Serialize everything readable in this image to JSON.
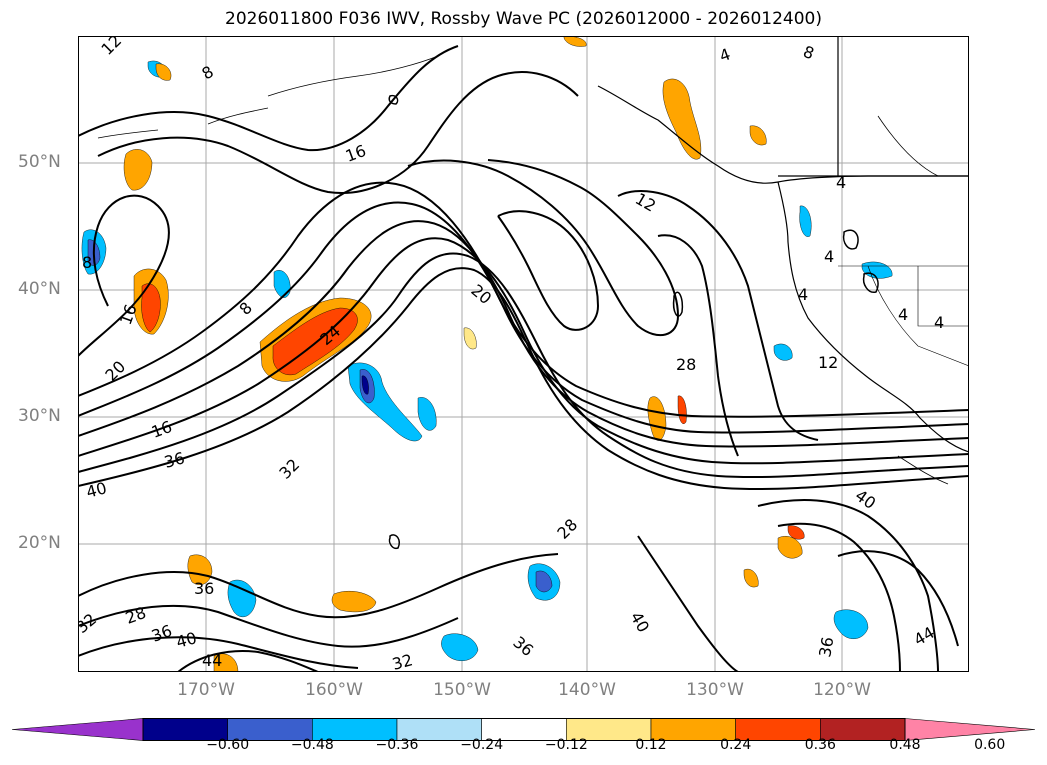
{
  "title": "2026011800 F036 IWV, Rossby Wave PC (2026012000 - 2026012400)",
  "lat_ticks": [
    "50°N",
    "40°N",
    "30°N",
    "20°N"
  ],
  "lon_ticks": [
    "170°W",
    "160°W",
    "150°W",
    "140°W",
    "130°W",
    "120°W"
  ],
  "contour_labels": [
    "12",
    "8",
    "16",
    "12",
    "4",
    "8",
    "16",
    "4",
    "4",
    "4",
    "4",
    "4",
    "8",
    "20",
    "20",
    "8",
    "24",
    "12",
    "28",
    "16",
    "36",
    "40",
    "32",
    "28",
    "40",
    "36",
    "32",
    "28",
    "36",
    "40",
    "44",
    "32",
    "36",
    "40",
    "36",
    "44"
  ],
  "colorbar": {
    "ticks": [
      "−0.60",
      "−0.48",
      "−0.36",
      "−0.24",
      "−0.12",
      "0.12",
      "0.24",
      "0.36",
      "0.48",
      "0.60"
    ],
    "colors": [
      "#9932cc",
      "#00008b",
      "#3a5fcd",
      "#00bfff",
      "#afe0f7",
      "#ffffff",
      "#ffe889",
      "#ffa500",
      "#ff4500",
      "#b22222",
      "#ff83a6"
    ]
  },
  "colors": {
    "contour": "#000000",
    "coastline": "#000000",
    "grid": "#a9a9a9",
    "axis_label": "#808080"
  }
}
